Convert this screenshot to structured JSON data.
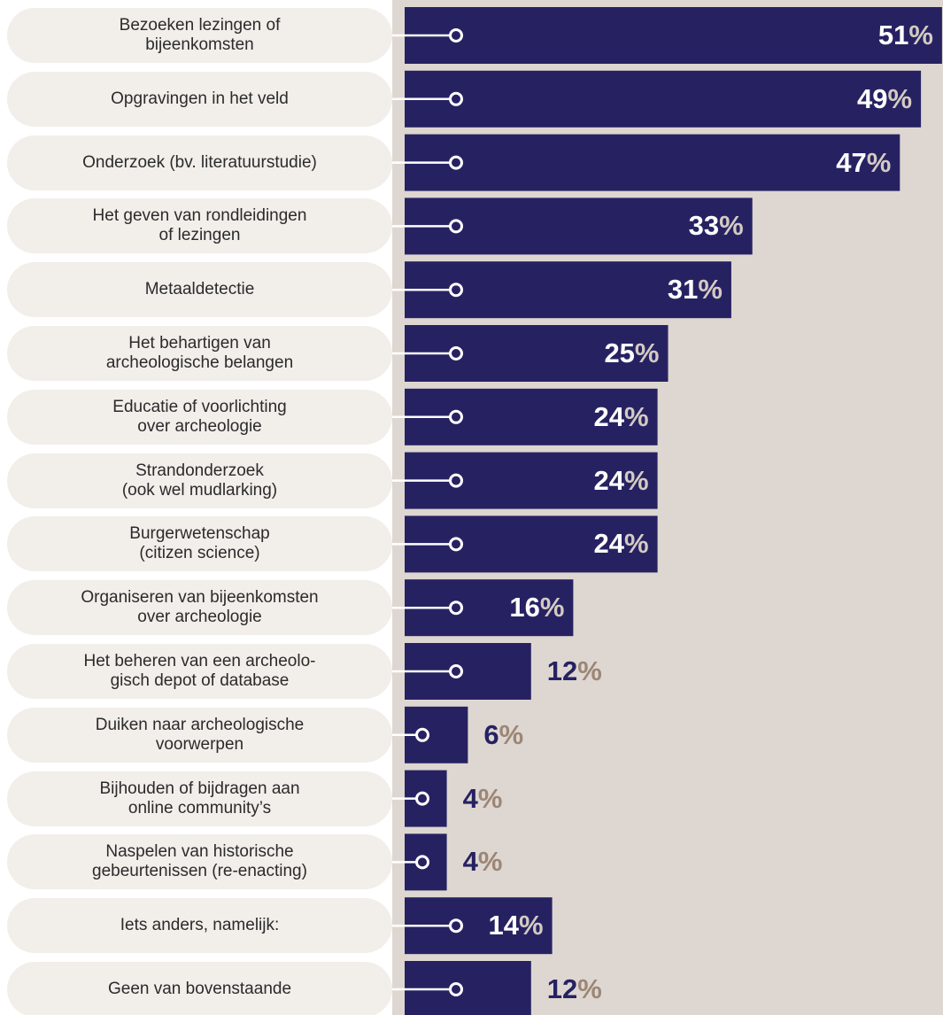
{
  "chart_data": {
    "type": "bar",
    "orientation": "horizontal",
    "color": "#262262",
    "categories": [
      "Bezoeken lezingen of\nbijeenkomsten",
      "Opgravingen in het veld",
      "Onderzoek (bv. literatuurstudie)",
      "Het geven van rondleidingen\nof lezingen",
      "Metaaldetectie",
      "Het behartigen van\narcheologische belangen",
      "Educatie of voorlichting\nover archeologie",
      "Strandonderzoek\n(ook wel mudlarking)",
      "Burgerwetenschap\n(citizen science)",
      "Organiseren van bijeenkomsten\nover archeologie",
      "Het beheren van een archeolo-\ngisch depot of database",
      "Duiken naar archeologische\nvoorwerpen",
      "Bijhouden of bijdragen aan\nonline community’s",
      "Naspelen van historische\ngebeurtenissen (re-enacting)",
      "Iets anders, namelijk:",
      "Geen van bovenstaande"
    ],
    "values": [
      51,
      49,
      47,
      33,
      31,
      25,
      24,
      24,
      24,
      16,
      12,
      6,
      4,
      4,
      14,
      12
    ],
    "value_labels": [
      "51%",
      "49%",
      "47%",
      "33%",
      "31%",
      "25%",
      "24%",
      "24%",
      "24%",
      "16%",
      "12%",
      "6%",
      "4%",
      "4%",
      "14%",
      "12%"
    ]
  }
}
